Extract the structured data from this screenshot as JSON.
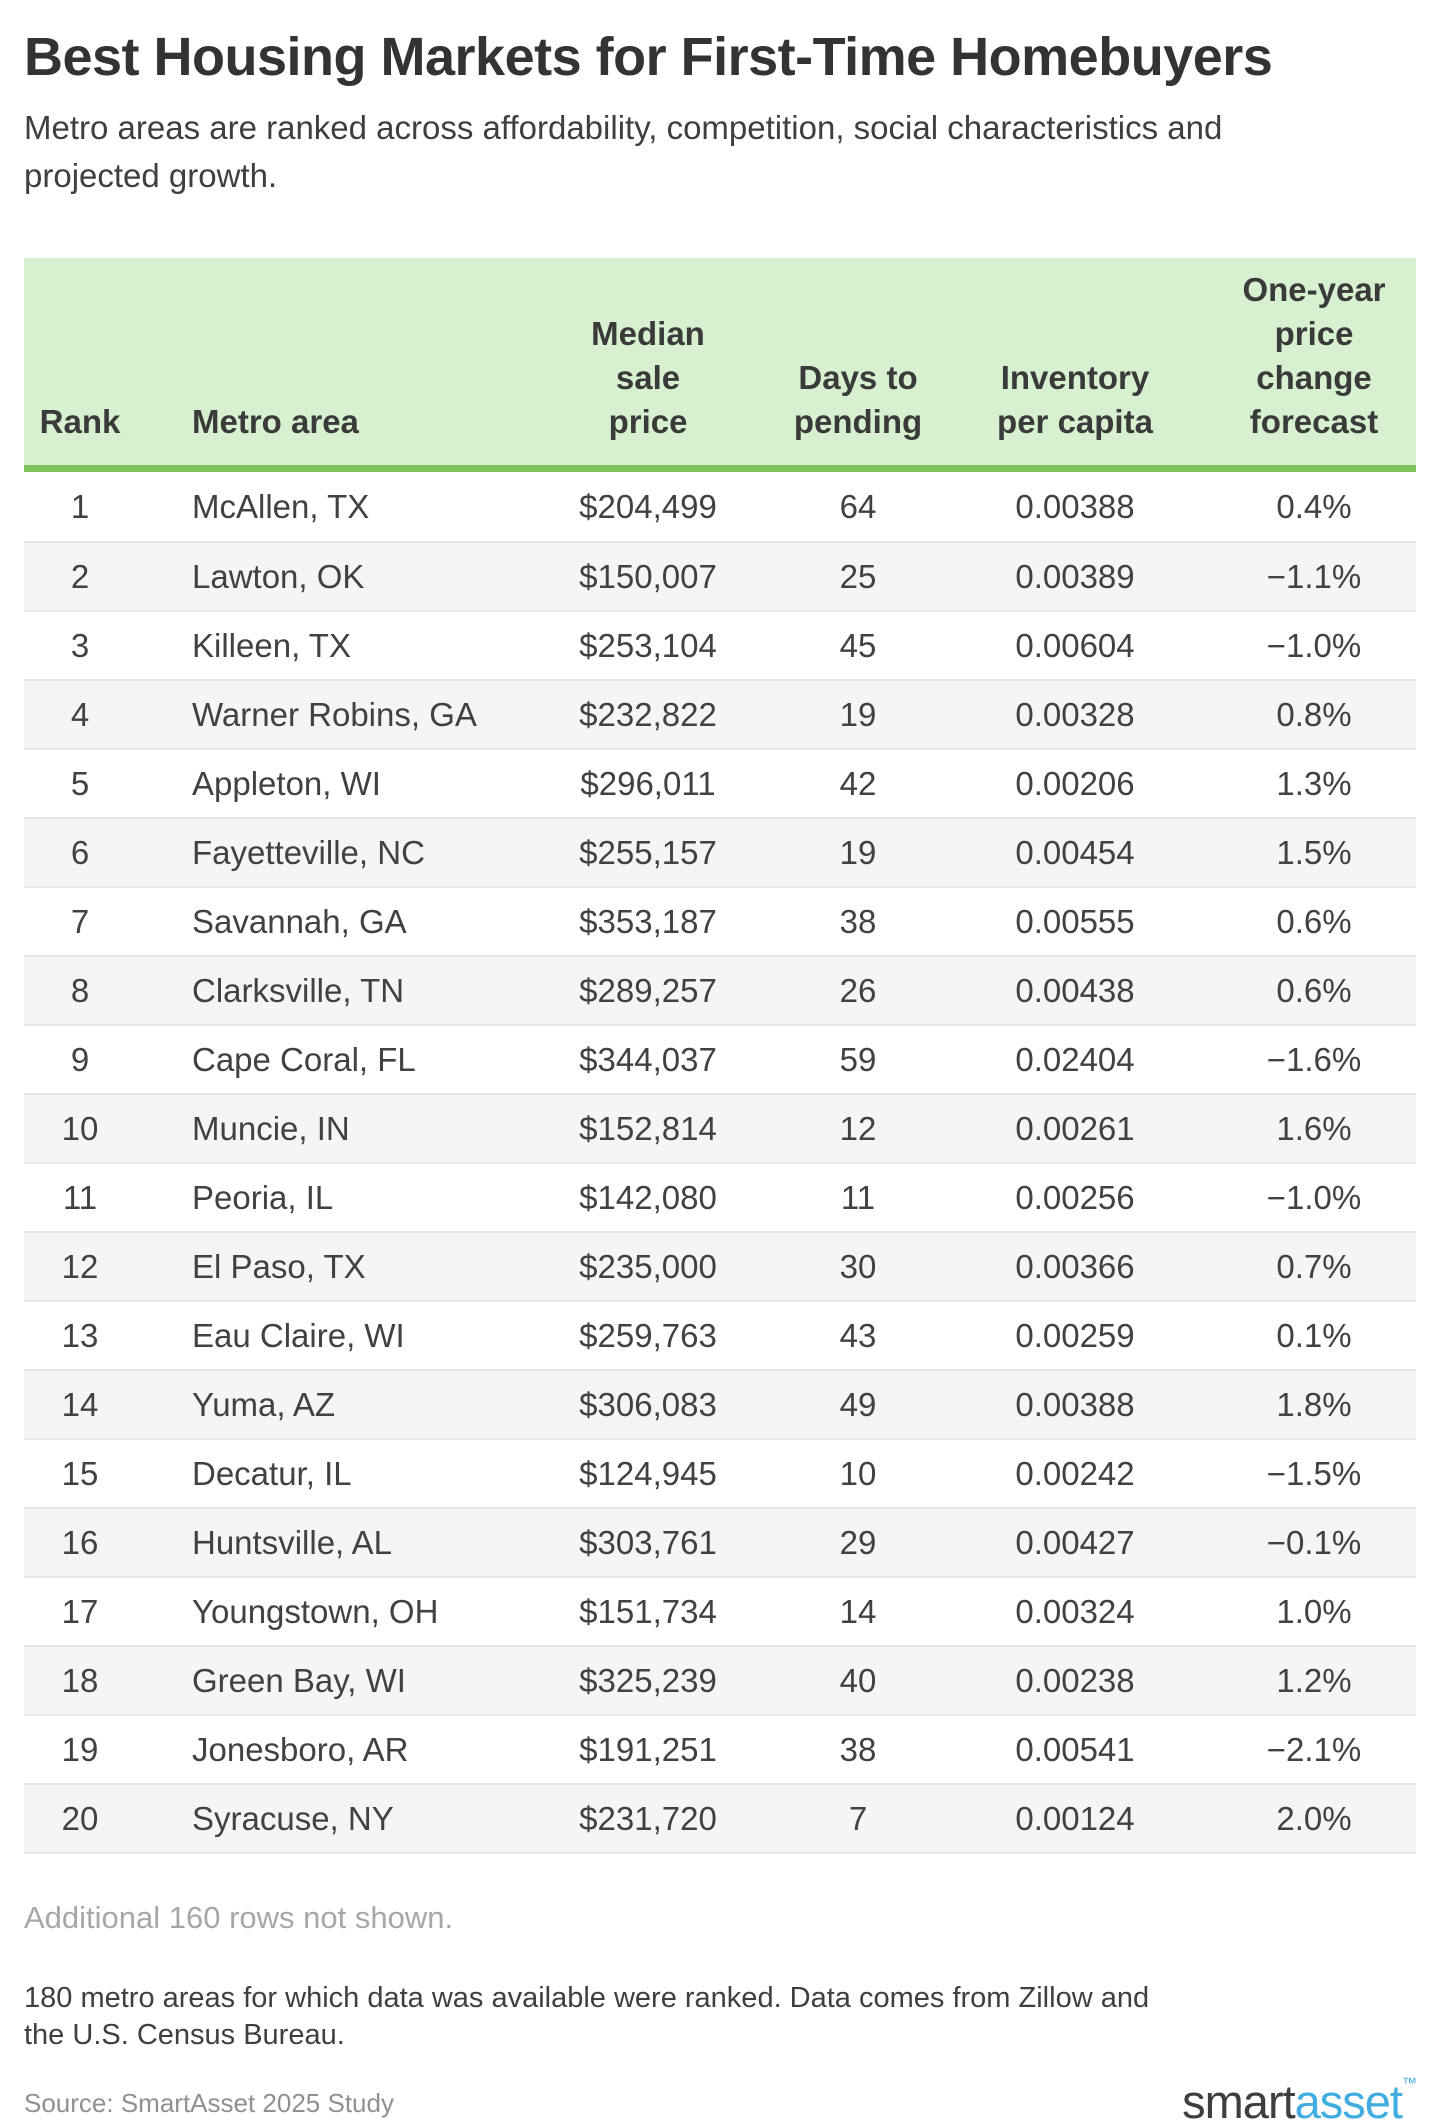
{
  "header": {
    "title": "Best Housing Markets for First-Time Homebuyers",
    "subtitle": "Metro areas are ranked across affordability, competition, social characteristics and\nprojected growth."
  },
  "table": {
    "columns": [
      {
        "id": "rank",
        "label": "Rank"
      },
      {
        "id": "metro",
        "label": "Metro area"
      },
      {
        "id": "price",
        "label": "Median\nsale\nprice"
      },
      {
        "id": "days",
        "label": "Days to\npending"
      },
      {
        "id": "inventory",
        "label": "Inventory\nper capita"
      },
      {
        "id": "forecast",
        "label": "One-year\nprice\nchange\nforecast"
      }
    ]
  },
  "chart_data": {
    "type": "table",
    "title": "Best Housing Markets for First-Time Homebuyers",
    "columns": [
      "Rank",
      "Metro area",
      "Median sale price",
      "Days to pending",
      "Inventory per capita",
      "One-year price change forecast"
    ],
    "rows": [
      [
        "1",
        "McAllen, TX",
        "$204,499",
        "64",
        "0.00388",
        "0.4%"
      ],
      [
        "2",
        "Lawton, OK",
        "$150,007",
        "25",
        "0.00389",
        "−1.1%"
      ],
      [
        "3",
        "Killeen, TX",
        "$253,104",
        "45",
        "0.00604",
        "−1.0%"
      ],
      [
        "4",
        "Warner Robins, GA",
        "$232,822",
        "19",
        "0.00328",
        "0.8%"
      ],
      [
        "5",
        "Appleton, WI",
        "$296,011",
        "42",
        "0.00206",
        "1.3%"
      ],
      [
        "6",
        "Fayetteville, NC",
        "$255,157",
        "19",
        "0.00454",
        "1.5%"
      ],
      [
        "7",
        "Savannah, GA",
        "$353,187",
        "38",
        "0.00555",
        "0.6%"
      ],
      [
        "8",
        "Clarksville, TN",
        "$289,257",
        "26",
        "0.00438",
        "0.6%"
      ],
      [
        "9",
        "Cape Coral, FL",
        "$344,037",
        "59",
        "0.02404",
        "−1.6%"
      ],
      [
        "10",
        "Muncie, IN",
        "$152,814",
        "12",
        "0.00261",
        "1.6%"
      ],
      [
        "11",
        "Peoria, IL",
        "$142,080",
        "11",
        "0.00256",
        "−1.0%"
      ],
      [
        "12",
        "El Paso, TX",
        "$235,000",
        "30",
        "0.00366",
        "0.7%"
      ],
      [
        "13",
        "Eau Claire, WI",
        "$259,763",
        "43",
        "0.00259",
        "0.1%"
      ],
      [
        "14",
        "Yuma, AZ",
        "$306,083",
        "49",
        "0.00388",
        "1.8%"
      ],
      [
        "15",
        "Decatur, IL",
        "$124,945",
        "10",
        "0.00242",
        "−1.5%"
      ],
      [
        "16",
        "Huntsville, AL",
        "$303,761",
        "29",
        "0.00427",
        "−0.1%"
      ],
      [
        "17",
        "Youngstown, OH",
        "$151,734",
        "14",
        "0.00324",
        "1.0%"
      ],
      [
        "18",
        "Green Bay, WI",
        "$325,239",
        "40",
        "0.00238",
        "1.2%"
      ],
      [
        "19",
        "Jonesboro, AR",
        "$191,251",
        "38",
        "0.00541",
        "−2.1%"
      ],
      [
        "20",
        "Syracuse, NY",
        "$231,720",
        "7",
        "0.00124",
        "2.0%"
      ]
    ]
  },
  "notes": {
    "additional_rows": "Additional 160 rows not shown.",
    "methodology": "180 metro areas for which data was available were ranked. Data comes from Zillow and\nthe U.S. Census Bureau.",
    "source": "Source: SmartAsset 2025 Study"
  },
  "branding": {
    "logo_part1": "smart",
    "logo_part2": "asset",
    "trademark": "™"
  },
  "colors": {
    "header_bg": "#d7f0d0",
    "header_border": "#7dc45c",
    "row_stripe": "#f5f5f5",
    "row_divider": "#e7e7e7",
    "text": "#414141",
    "muted": "#a7a7a7",
    "brand_blue": "#41ace0",
    "brand_dark": "#3e3e3e"
  }
}
